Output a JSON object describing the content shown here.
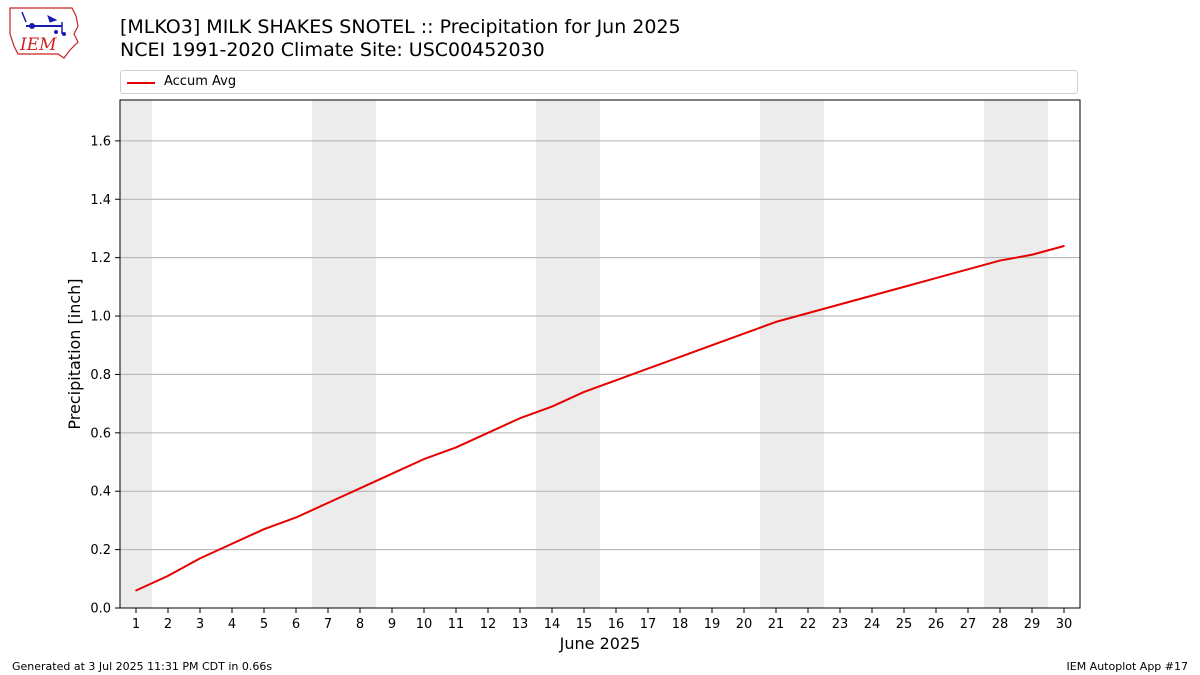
{
  "title": {
    "line1": "[MLKO3] MILK SHAKES SNOTEL :: Precipitation for Jun 2025",
    "line2": "NCEI 1991-2020 Climate Site: USC00452030"
  },
  "logo": {
    "text": "IEM",
    "color": "#cc2222",
    "icon_color": "#1a1ab0"
  },
  "legend": {
    "entries": [
      {
        "label": "Accum Avg",
        "color": "#e60000"
      }
    ],
    "placement": "top"
  },
  "chart_data": {
    "type": "line",
    "title": "[MLKO3] MILK SHAKES SNOTEL :: Precipitation for Jun 2025",
    "subtitle": "NCEI 1991-2020 Climate Site: USC00452030",
    "xlabel": "June 2025",
    "ylabel": "Precipitation [inch]",
    "xlim": [
      0.5,
      30.5
    ],
    "ylim": [
      0,
      1.74
    ],
    "x": [
      1,
      2,
      3,
      4,
      5,
      6,
      7,
      8,
      9,
      10,
      11,
      12,
      13,
      14,
      15,
      16,
      17,
      18,
      19,
      20,
      21,
      22,
      23,
      24,
      25,
      26,
      27,
      28,
      29,
      30
    ],
    "xticks": [
      1,
      2,
      3,
      4,
      5,
      6,
      7,
      8,
      9,
      10,
      11,
      12,
      13,
      14,
      15,
      16,
      17,
      18,
      19,
      20,
      21,
      22,
      23,
      24,
      25,
      26,
      27,
      28,
      29,
      30
    ],
    "yticks": [
      0.0,
      0.2,
      0.4,
      0.6,
      0.8,
      1.0,
      1.2,
      1.4,
      1.6
    ],
    "ytick_labels": [
      "0.0",
      "0.2",
      "0.4",
      "0.6",
      "0.8",
      "1.0",
      "1.2",
      "1.4",
      "1.6"
    ],
    "grid": "y-major",
    "weekend_shading": [
      [
        0.5,
        1.5
      ],
      [
        6.5,
        8.5
      ],
      [
        13.5,
        15.5
      ],
      [
        20.5,
        22.5
      ],
      [
        27.5,
        29.5
      ]
    ],
    "shading_color": "#ececec",
    "series": [
      {
        "name": "Accum Avg",
        "color": "#e60000",
        "values": [
          0.06,
          0.11,
          0.17,
          0.22,
          0.27,
          0.31,
          0.36,
          0.41,
          0.46,
          0.51,
          0.55,
          0.6,
          0.65,
          0.69,
          0.74,
          0.78,
          0.82,
          0.86,
          0.9,
          0.94,
          0.98,
          1.01,
          1.04,
          1.07,
          1.1,
          1.13,
          1.16,
          1.19,
          1.21,
          1.24
        ]
      }
    ]
  },
  "footer": {
    "generated": "Generated at 3 Jul 2025 11:31 PM CDT in 0.66s",
    "app": "IEM Autoplot App #17"
  }
}
